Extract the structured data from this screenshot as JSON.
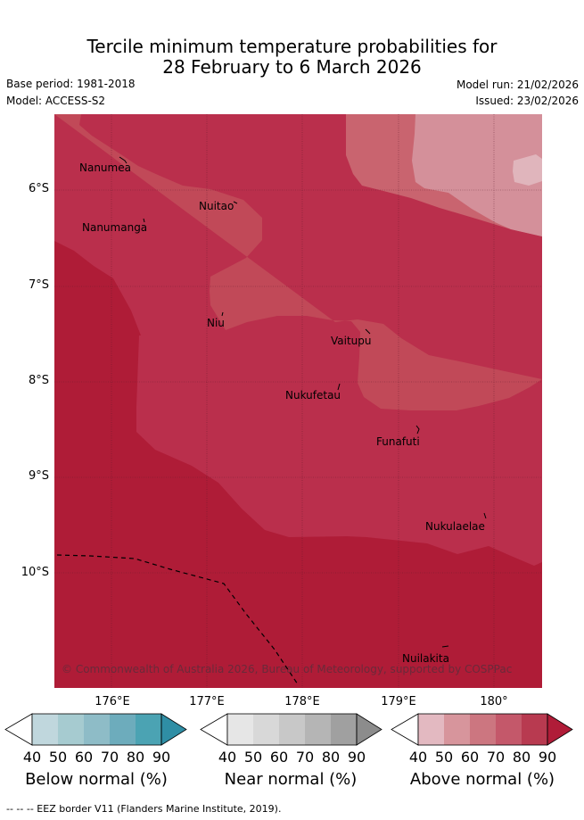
{
  "title": {
    "line1": "Tercile minimum temperature probabilities for",
    "line2": "28 February to 6 March 2026"
  },
  "meta": {
    "base_period": "Base period: 1981-2018",
    "model": "Model: ACCESS-S2",
    "model_run": "Model run: 21/02/2026",
    "issued": "Issued: 23/02/2026"
  },
  "map": {
    "lat_labels": [
      "6°S",
      "7°S",
      "8°S",
      "9°S",
      "10°S"
    ],
    "lon_labels": [
      "176°E",
      "177°E",
      "178°E",
      "179°E",
      "180°"
    ],
    "islands": [
      "Nanumea",
      "Nuitao",
      "Nanumanga",
      "Niu",
      "Vaitupu",
      "Nukufetau",
      "Funafuti",
      "Nukulaelae",
      "Nuilakita"
    ],
    "copyright": "© Commonwealth of Australia 2026, Bureau of Meteorology, supported by COSPPac"
  },
  "colorbars": {
    "below": {
      "title": "Below normal (%)",
      "ticks": [
        "40",
        "50",
        "60",
        "70",
        "80",
        "90"
      ],
      "colors": [
        "#ffffff",
        "#c0d7dd",
        "#a6cbd0",
        "#8ebcc7",
        "#6dacbc",
        "#4ba3b3",
        "#2f8ea5"
      ]
    },
    "near": {
      "title": "Near normal (%)",
      "ticks": [
        "40",
        "50",
        "60",
        "70",
        "80",
        "90"
      ],
      "colors": [
        "#ffffff",
        "#e6e6e6",
        "#d8d8d8",
        "#c8c8c8",
        "#b5b5b5",
        "#a0a0a0",
        "#8c8c8c"
      ]
    },
    "above": {
      "title": "Above normal (%)",
      "ticks": [
        "40",
        "50",
        "60",
        "70",
        "80",
        "90"
      ],
      "colors": [
        "#ffffff",
        "#e3b9c1",
        "#d7959c",
        "#cc7680",
        "#c4586a",
        "#b83a50",
        "#b01c38"
      ]
    }
  },
  "footnote": "--  --  -- EEZ border V11 (Flanders Marine Institute, 2019)."
}
